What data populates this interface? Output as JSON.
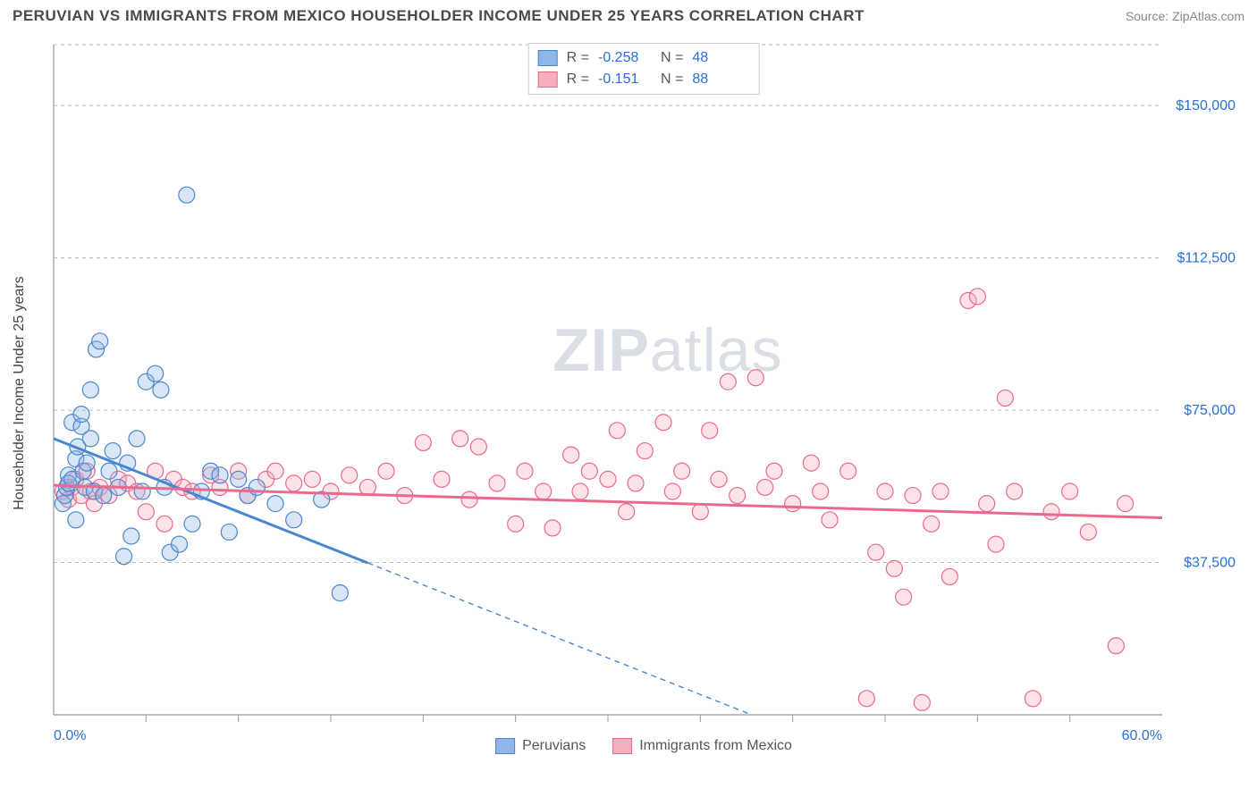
{
  "header": {
    "title": "PERUVIAN VS IMMIGRANTS FROM MEXICO HOUSEHOLDER INCOME UNDER 25 YEARS CORRELATION CHART",
    "source": "Source: ZipAtlas.com"
  },
  "chart": {
    "type": "scatter",
    "ylabel": "Householder Income Under 25 years",
    "xlim": [
      0,
      60
    ],
    "ylim": [
      0,
      165000
    ],
    "x_start_label": "0.0%",
    "x_end_label": "60.0%",
    "x_ticks_minor": [
      5,
      10,
      15,
      20,
      25,
      30,
      35,
      40,
      45,
      50,
      55
    ],
    "y_gridlines": [
      37500,
      75000,
      112500,
      150000
    ],
    "y_tick_labels": [
      "$37,500",
      "$75,000",
      "$112,500",
      "$150,000"
    ],
    "grid_color": "#bbbbbb",
    "axis_color": "#999999",
    "background_color": "#ffffff",
    "watermark": "ZIPatlas",
    "marker_radius": 9,
    "marker_fill_opacity": 0.35,
    "series": {
      "peruvians": {
        "label": "Peruvians",
        "color_fill": "#8fb6e6",
        "color_stroke": "#4a87cf",
        "R": "-0.258",
        "N": "48",
        "trend": {
          "y_at_x0": 68000,
          "y_at_x60": -40000,
          "solid_until_x": 17
        },
        "points": [
          [
            0.5,
            52000
          ],
          [
            0.6,
            54000
          ],
          [
            0.7,
            56000
          ],
          [
            0.8,
            59000
          ],
          [
            0.8,
            57000
          ],
          [
            1.0,
            58000
          ],
          [
            1.0,
            72000
          ],
          [
            1.2,
            48000
          ],
          [
            1.2,
            63000
          ],
          [
            1.3,
            66000
          ],
          [
            1.5,
            71000
          ],
          [
            1.5,
            74000
          ],
          [
            1.6,
            60000
          ],
          [
            1.7,
            56000
          ],
          [
            1.8,
            62000
          ],
          [
            2.0,
            80000
          ],
          [
            2.0,
            68000
          ],
          [
            2.2,
            55000
          ],
          [
            2.3,
            90000
          ],
          [
            2.5,
            92000
          ],
          [
            2.7,
            54000
          ],
          [
            3.0,
            60000
          ],
          [
            3.2,
            65000
          ],
          [
            3.5,
            56000
          ],
          [
            3.8,
            39000
          ],
          [
            4.0,
            62000
          ],
          [
            4.2,
            44000
          ],
          [
            4.5,
            68000
          ],
          [
            4.8,
            55000
          ],
          [
            5.0,
            82000
          ],
          [
            5.5,
            84000
          ],
          [
            5.8,
            80000
          ],
          [
            6.0,
            56000
          ],
          [
            6.3,
            40000
          ],
          [
            6.8,
            42000
          ],
          [
            7.2,
            128000
          ],
          [
            7.5,
            47000
          ],
          [
            8.0,
            55000
          ],
          [
            8.5,
            60000
          ],
          [
            9.0,
            59000
          ],
          [
            9.5,
            45000
          ],
          [
            10.0,
            58000
          ],
          [
            10.5,
            54000
          ],
          [
            11.0,
            56000
          ],
          [
            12.0,
            52000
          ],
          [
            13.0,
            48000
          ],
          [
            14.5,
            53000
          ],
          [
            15.5,
            30000
          ]
        ]
      },
      "mexico": {
        "label": "Immigrants from Mexico",
        "color_fill": "#f4aebd",
        "color_stroke": "#e96a8d",
        "R": "-0.151",
        "N": "88",
        "trend": {
          "y_at_x0": 56500,
          "y_at_x60": 48500,
          "solid_until_x": 60
        },
        "points": [
          [
            0.5,
            55000
          ],
          [
            0.8,
            53000
          ],
          [
            1.0,
            56000
          ],
          [
            1.2,
            58000
          ],
          [
            1.5,
            54000
          ],
          [
            1.8,
            60000
          ],
          [
            2.0,
            55000
          ],
          [
            2.2,
            52000
          ],
          [
            2.5,
            56000
          ],
          [
            3.0,
            54000
          ],
          [
            3.5,
            58000
          ],
          [
            4.0,
            57000
          ],
          [
            4.5,
            55000
          ],
          [
            5.0,
            50000
          ],
          [
            5.5,
            60000
          ],
          [
            6.0,
            47000
          ],
          [
            6.5,
            58000
          ],
          [
            7.0,
            56000
          ],
          [
            7.5,
            55000
          ],
          [
            8.5,
            59000
          ],
          [
            9.0,
            56000
          ],
          [
            10.0,
            60000
          ],
          [
            10.5,
            54000
          ],
          [
            11.5,
            58000
          ],
          [
            12.0,
            60000
          ],
          [
            13.0,
            57000
          ],
          [
            14.0,
            58000
          ],
          [
            15.0,
            55000
          ],
          [
            16.0,
            59000
          ],
          [
            17.0,
            56000
          ],
          [
            18.0,
            60000
          ],
          [
            19.0,
            54000
          ],
          [
            20.0,
            67000
          ],
          [
            21.0,
            58000
          ],
          [
            22.0,
            68000
          ],
          [
            22.5,
            53000
          ],
          [
            23.0,
            66000
          ],
          [
            24.0,
            57000
          ],
          [
            25.0,
            47000
          ],
          [
            25.5,
            60000
          ],
          [
            26.5,
            55000
          ],
          [
            27.0,
            46000
          ],
          [
            28.0,
            64000
          ],
          [
            28.5,
            55000
          ],
          [
            29.0,
            60000
          ],
          [
            30.0,
            58000
          ],
          [
            30.5,
            70000
          ],
          [
            31.0,
            50000
          ],
          [
            31.5,
            57000
          ],
          [
            32.0,
            65000
          ],
          [
            33.0,
            72000
          ],
          [
            33.5,
            55000
          ],
          [
            34.0,
            60000
          ],
          [
            35.0,
            50000
          ],
          [
            35.5,
            70000
          ],
          [
            36.0,
            58000
          ],
          [
            36.5,
            82000
          ],
          [
            37.0,
            54000
          ],
          [
            38.0,
            83000
          ],
          [
            38.5,
            56000
          ],
          [
            39.0,
            60000
          ],
          [
            40.0,
            52000
          ],
          [
            41.0,
            62000
          ],
          [
            41.5,
            55000
          ],
          [
            42.0,
            48000
          ],
          [
            43.0,
            60000
          ],
          [
            44.0,
            4000
          ],
          [
            44.5,
            40000
          ],
          [
            45.0,
            55000
          ],
          [
            45.5,
            36000
          ],
          [
            46.0,
            29000
          ],
          [
            46.5,
            54000
          ],
          [
            47.0,
            3000
          ],
          [
            47.5,
            47000
          ],
          [
            48.0,
            55000
          ],
          [
            48.5,
            34000
          ],
          [
            49.5,
            102000
          ],
          [
            50.0,
            103000
          ],
          [
            50.5,
            52000
          ],
          [
            51.0,
            42000
          ],
          [
            51.5,
            78000
          ],
          [
            52.0,
            55000
          ],
          [
            53.0,
            4000
          ],
          [
            54.0,
            50000
          ],
          [
            55.0,
            55000
          ],
          [
            56.0,
            45000
          ],
          [
            57.5,
            17000
          ],
          [
            58.0,
            52000
          ]
        ]
      }
    },
    "legend_top": {
      "rows": [
        {
          "swatch": "peruvians",
          "R_label": "R =",
          "N_label": "N ="
        },
        {
          "swatch": "mexico",
          "R_label": "R =",
          "N_label": "N ="
        }
      ]
    }
  }
}
